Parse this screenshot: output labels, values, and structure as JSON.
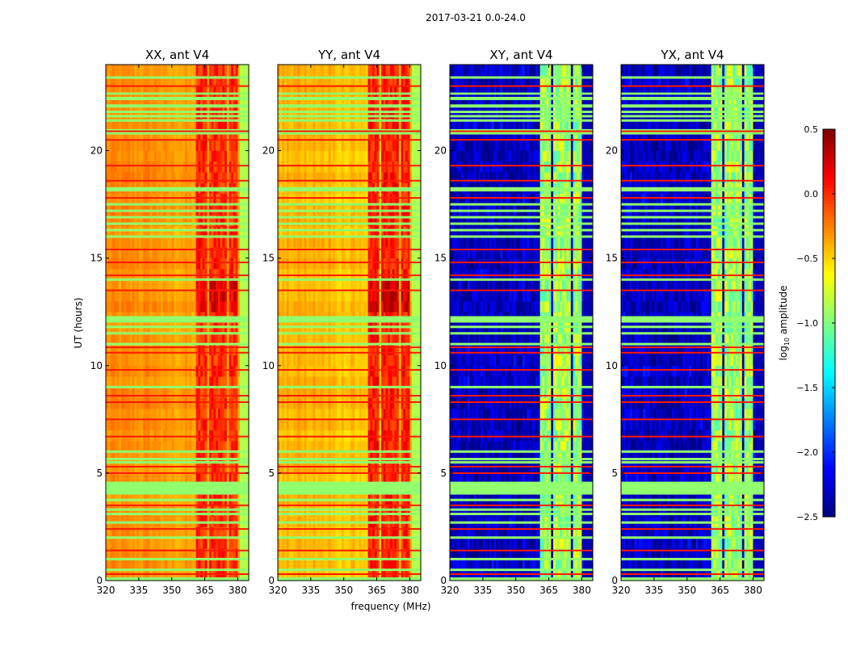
{
  "chart_data": {
    "type": "heatmap",
    "suptitle": "2017-03-21 0.0-24.0",
    "xlabel": "frequency (MHz)",
    "ylabel": "UT (hours)",
    "xlim": [
      320,
      385
    ],
    "ylim": [
      0,
      24
    ],
    "xticks": [
      320,
      335,
      350,
      365,
      380
    ],
    "yticks": [
      0,
      5,
      10,
      15,
      20
    ],
    "colormap": "jet",
    "colorbar": {
      "label_prefix": "log",
      "label_sub": "10",
      "label_suffix": " amplitude",
      "range": [
        -2.5,
        0.5
      ],
      "ticks": [
        "0.5",
        "0.0",
        "−0.5",
        "−1.0",
        "−1.5",
        "−2.0",
        "−2.5"
      ],
      "tick_values": [
        0.5,
        0.0,
        -0.5,
        -1.0,
        -1.5,
        -2.0,
        -2.5
      ]
    },
    "panels": [
      {
        "title": "XX, ant V4",
        "kind": "auto",
        "base_log10_amp": -0.35,
        "band_log10_amp": 0.0
      },
      {
        "title": "YY, ant V4",
        "kind": "auto",
        "base_log10_amp": -0.45,
        "band_log10_amp": 0.05
      },
      {
        "title": "XY, ant V4",
        "kind": "cross",
        "base_log10_amp": -2.3,
        "band_log10_amp": -0.9
      },
      {
        "title": "YX, ant V4",
        "kind": "cross",
        "base_log10_amp": -2.3,
        "band_log10_amp": -0.9
      }
    ],
    "rfi_bands_mhz": [
      [
        361,
        366
      ],
      [
        366.7,
        371
      ],
      [
        371.5,
        375.5
      ],
      [
        376,
        380
      ]
    ],
    "flagged_value": -0.95,
    "flagged_time_ranges_h": [
      [
        4.0,
        4.6
      ],
      [
        12.0,
        12.3
      ],
      [
        18.1,
        18.3
      ],
      [
        20.75,
        21.0
      ],
      [
        22.0,
        22.15
      ],
      [
        22.35,
        22.5
      ],
      [
        22.6,
        22.7
      ]
    ],
    "flagged_times_h": [
      0.5,
      1.0,
      2.0,
      2.7,
      3.1,
      3.3,
      3.75,
      5.5,
      5.65,
      6.0,
      9.0,
      11.0,
      11.5,
      11.8,
      14.0,
      16.0,
      16.3,
      16.6,
      16.9,
      17.2,
      17.5,
      21.4,
      21.6,
      21.8,
      23.4
    ],
    "rfi_times_h": [
      0.3,
      1.4,
      2.4,
      3.5,
      5.0,
      5.3,
      6.7,
      7.5,
      8.3,
      8.6,
      9.8,
      10.6,
      10.85,
      13.5,
      14.2,
      14.8,
      15.4,
      17.8,
      18.6,
      19.3,
      20.5,
      20.9,
      23.0
    ]
  }
}
